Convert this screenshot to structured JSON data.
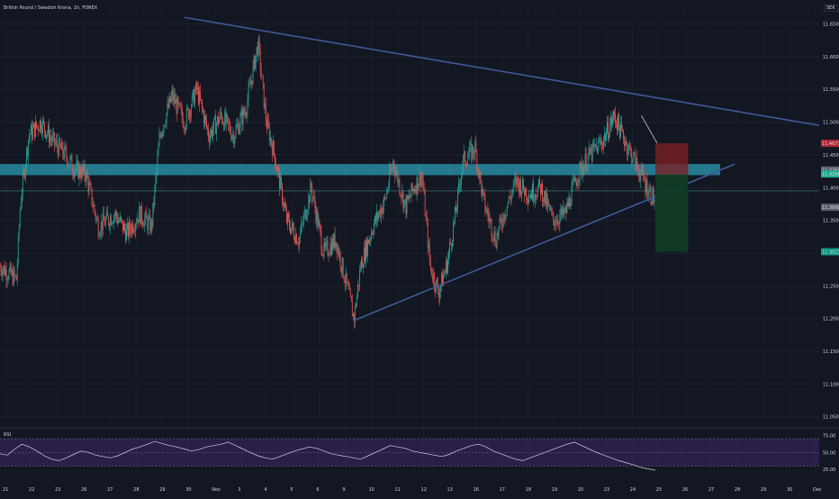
{
  "instrument": {
    "title": "British Pound / Swedish Krona, 1h, FOREX",
    "currency": "SEK"
  },
  "chart_data": [
    {
      "type": "candlestick",
      "y_ticks": [
        "11.65000",
        "11.60000",
        "11.55000",
        "11.50000",
        "11.45000",
        "11.40000",
        "11.35000",
        "11.30000",
        "11.25000",
        "11.20000",
        "11.15000",
        "11.10000",
        "11.05000"
      ],
      "ylim": [
        11.04,
        11.67
      ],
      "x_ticks": [
        "21",
        "22",
        "23",
        "26",
        "27",
        "28",
        "29",
        "30",
        "Nov",
        "3",
        "4",
        "5",
        "6",
        "9",
        "10",
        "11",
        "12",
        "13",
        "16",
        "17",
        "18",
        "19",
        "20",
        "23",
        "24",
        "25",
        "26",
        "27",
        "28",
        "29",
        "30",
        "Dec"
      ],
      "price_tags": [
        {
          "label": "11.46770",
          "value": 11.4677,
          "color": "#b22833"
        },
        {
          "label": "11.42691",
          "value": 11.4269,
          "color": "#5d606b"
        },
        {
          "label": "11.42085",
          "value": 11.4209,
          "color": "#22ab94"
        },
        {
          "label": "11.36999",
          "value": 11.37,
          "color": "#5d606b"
        },
        {
          "label": "11.30213",
          "value": 11.3021,
          "color": "#0b9981"
        }
      ],
      "resistance_zone": {
        "from": 11.419,
        "to": 11.436
      },
      "horizontal_line": 11.395,
      "trendlines": [
        {
          "name": "descending",
          "points": [
            [
              0.225,
              11.66
            ],
            [
              1.0,
              11.495
            ]
          ]
        },
        {
          "name": "ascending",
          "points": [
            [
              0.432,
              11.197
            ],
            [
              0.897,
              11.436
            ]
          ]
        }
      ],
      "position": {
        "entry": 11.42,
        "stop": 11.4677,
        "target": 11.3021,
        "x_from": 0.8,
        "x_to": 0.84
      },
      "candle_close_path": [
        [
          0.0,
          11.28
        ],
        [
          0.02,
          11.26
        ],
        [
          0.025,
          11.38
        ],
        [
          0.035,
          11.48
        ],
        [
          0.05,
          11.5
        ],
        [
          0.065,
          11.47
        ],
        [
          0.08,
          11.45
        ],
        [
          0.09,
          11.43
        ],
        [
          0.105,
          11.42
        ],
        [
          0.12,
          11.34
        ],
        [
          0.14,
          11.36
        ],
        [
          0.155,
          11.33
        ],
        [
          0.17,
          11.36
        ],
        [
          0.185,
          11.34
        ],
        [
          0.195,
          11.48
        ],
        [
          0.21,
          11.54
        ],
        [
          0.225,
          11.5
        ],
        [
          0.24,
          11.55
        ],
        [
          0.255,
          11.48
        ],
        [
          0.27,
          11.51
        ],
        [
          0.285,
          11.48
        ],
        [
          0.3,
          11.52
        ],
        [
          0.315,
          11.62
        ],
        [
          0.325,
          11.5
        ],
        [
          0.335,
          11.45
        ],
        [
          0.35,
          11.35
        ],
        [
          0.365,
          11.32
        ],
        [
          0.38,
          11.4
        ],
        [
          0.395,
          11.3
        ],
        [
          0.41,
          11.32
        ],
        [
          0.425,
          11.24
        ],
        [
          0.432,
          11.2
        ],
        [
          0.44,
          11.28
        ],
        [
          0.455,
          11.34
        ],
        [
          0.47,
          11.38
        ],
        [
          0.48,
          11.44
        ],
        [
          0.495,
          11.37
        ],
        [
          0.505,
          11.4
        ],
        [
          0.515,
          11.42
        ],
        [
          0.525,
          11.28
        ],
        [
          0.535,
          11.24
        ],
        [
          0.545,
          11.28
        ],
        [
          0.555,
          11.35
        ],
        [
          0.565,
          11.44
        ],
        [
          0.58,
          11.46
        ],
        [
          0.59,
          11.38
        ],
        [
          0.605,
          11.32
        ],
        [
          0.615,
          11.36
        ],
        [
          0.63,
          11.41
        ],
        [
          0.645,
          11.39
        ],
        [
          0.66,
          11.4
        ],
        [
          0.675,
          11.35
        ],
        [
          0.69,
          11.36
        ],
        [
          0.705,
          11.42
        ],
        [
          0.72,
          11.45
        ],
        [
          0.735,
          11.47
        ],
        [
          0.75,
          11.51
        ],
        [
          0.76,
          11.48
        ],
        [
          0.775,
          11.44
        ],
        [
          0.79,
          11.4
        ],
        [
          0.8,
          11.38
        ]
      ],
      "annotation_arrow": {
        "from": [
          0.783,
          11.51
        ],
        "to": [
          0.802,
          11.468
        ]
      }
    },
    {
      "type": "line",
      "name": "RSI",
      "label": "RSI",
      "y_ticks": [
        "75.00",
        "50.00",
        "25.00"
      ],
      "ylim": [
        20,
        82
      ],
      "band": [
        30,
        70
      ],
      "values": [
        48,
        46,
        55,
        62,
        58,
        52,
        45,
        40,
        38,
        42,
        47,
        52,
        50,
        46,
        44,
        42,
        45,
        50,
        55,
        58,
        62,
        66,
        63,
        60,
        58,
        55,
        52,
        54,
        58,
        60,
        62,
        65,
        60,
        55,
        50,
        45,
        42,
        40,
        44,
        48,
        52,
        55,
        58,
        56,
        52,
        48,
        46,
        44,
        42,
        40,
        45,
        50,
        55,
        60,
        58,
        56,
        52,
        50,
        48,
        46,
        44,
        47,
        52,
        56,
        60,
        62,
        58,
        52,
        48,
        44,
        40,
        38,
        42,
        46,
        50,
        54,
        58,
        62,
        65,
        60,
        55,
        50,
        46,
        42,
        38,
        35,
        32,
        28,
        26,
        24
      ]
    }
  ]
}
